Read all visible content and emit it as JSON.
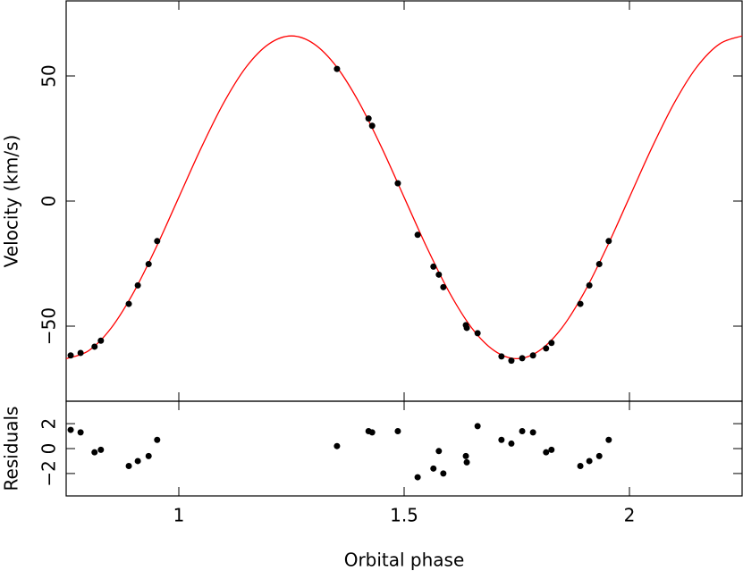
{
  "chart_data": [
    {
      "type": "scatter",
      "ylabel": "Velocity (km/s)",
      "xlim": [
        0.75,
        2.25
      ],
      "xticks": [
        1,
        1.5,
        2
      ],
      "ylim": [
        -80,
        80
      ],
      "yticks": [
        {
          "value": -50,
          "label": "−50"
        },
        0,
        50
      ],
      "series": [
        {
          "color": "#ff0000",
          "style": "line",
          "x": [
            0.75,
            0.8,
            0.85,
            0.9,
            0.95,
            1.0,
            1.05,
            1.1,
            1.15,
            1.2,
            1.25,
            1.3,
            1.35,
            1.4,
            1.45,
            1.5,
            1.55,
            1.6,
            1.65,
            1.7,
            1.75,
            1.8,
            1.85,
            1.9,
            1.95,
            2.0,
            2.05,
            2.1,
            2.15,
            2.2,
            2.25
          ],
          "values": [
            -63,
            -59.8,
            -50.7,
            -36.4,
            -18.4,
            1.5,
            21.4,
            39.4,
            53.7,
            62.8,
            66,
            62.8,
            53.7,
            39.4,
            21.4,
            1.5,
            -18.4,
            -36.4,
            -50.7,
            -59.8,
            -63,
            -59.8,
            -50.7,
            -36.4,
            -18.4,
            1.5,
            21.4,
            39.4,
            53.7,
            62.8,
            66
          ]
        },
        {
          "color": "#000000",
          "style": "points",
          "x": [
            0.76,
            0.782,
            0.813,
            0.827,
            0.889,
            0.909,
            0.933,
            0.952,
            1.351,
            1.421,
            1.429,
            1.486,
            1.53,
            1.565,
            1.577,
            1.587,
            1.637,
            1.639,
            1.663,
            1.716,
            1.738,
            1.762,
            1.786,
            1.815,
            1.827,
            1.891,
            1.911,
            1.933,
            1.954
          ],
          "values": [
            -61.7,
            -60.7,
            -58.2,
            -55.8,
            -41.1,
            -33.7,
            -25.2,
            -16.0,
            52.8,
            33.0,
            30.1,
            7.1,
            -13.5,
            -26.2,
            -29.4,
            -34.4,
            -49.6,
            -50.7,
            -52.8,
            -62.1,
            -63.8,
            -62.8,
            -61.7,
            -58.9,
            -56.7,
            -41.1,
            -33.7,
            -25.2,
            -16.0
          ]
        }
      ]
    },
    {
      "type": "scatter",
      "ylabel": "Residuals",
      "xlabel": "Orbital phase",
      "xlim": [
        0.75,
        2.25
      ],
      "xticks": [
        1,
        1.5,
        2
      ],
      "ylim": [
        -3.8,
        3.8
      ],
      "yticks": [
        {
          "value": -2,
          "label": "−2"
        },
        0,
        2
      ],
      "series": [
        {
          "color": "#000000",
          "style": "points",
          "x": [
            0.76,
            0.782,
            0.813,
            0.827,
            0.889,
            0.909,
            0.933,
            0.952,
            1.351,
            1.421,
            1.429,
            1.486,
            1.53,
            1.565,
            1.577,
            1.587,
            1.637,
            1.639,
            1.663,
            1.716,
            1.738,
            1.762,
            1.786,
            1.815,
            1.827,
            1.891,
            1.911,
            1.933,
            1.954
          ],
          "values": [
            1.5,
            1.3,
            -0.3,
            -0.1,
            -1.4,
            -1.0,
            -0.6,
            0.7,
            0.2,
            1.4,
            1.3,
            1.4,
            -2.3,
            -1.6,
            -0.2,
            -2.0,
            -0.6,
            -1.1,
            1.8,
            0.7,
            0.4,
            1.4,
            1.3,
            -0.3,
            -0.1,
            -1.4,
            -1.0,
            -0.6,
            0.7
          ]
        }
      ]
    }
  ]
}
